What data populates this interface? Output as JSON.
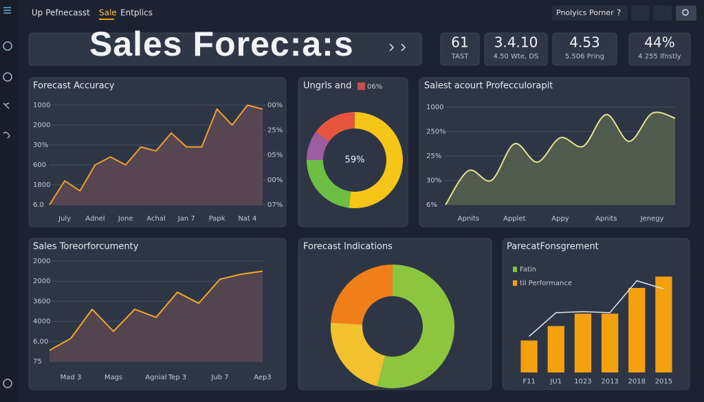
{
  "header": {
    "nav": [
      "Up Pefnecasst",
      "Sale",
      "Entplics"
    ],
    "account": "Pnolyics Porner",
    "help": "?"
  },
  "title": "Sales Forec:a:s",
  "kpis": [
    {
      "value": "61",
      "label": "TAST"
    },
    {
      "value": "3.4.10",
      "label": "4.50 Wte, DS"
    },
    {
      "value": "4.53",
      "label": "5.506 Pring"
    },
    {
      "value": "44%",
      "label": "4 255 Ifnstly"
    }
  ],
  "chart_data": [
    {
      "type": "line",
      "title": "Forecast Accuracy",
      "categories": [
        null,
        "July",
        null,
        "Adnel",
        null,
        "Jone",
        null,
        "Achal",
        null,
        "Jan 7",
        null,
        "Papk",
        null,
        "Nat 4",
        null
      ],
      "series": [
        {
          "color": "#f0a030",
          "values": [
            0,
            1.2,
            0.7,
            2.0,
            2.4,
            2.0,
            2.9,
            2.7,
            3.6,
            2.9,
            2.9,
            4.8,
            4.0,
            5.0,
            4.8
          ]
        }
      ],
      "fill": "#5e4853",
      "ylim": [
        0,
        5
      ],
      "yticks": [
        {
          "value": 0,
          "label": "6.0"
        },
        {
          "value": 1,
          "label": "1800"
        },
        {
          "value": 2,
          "label": "600"
        },
        {
          "value": 3,
          "label": "30%"
        },
        {
          "value": 4,
          "label": "2000"
        },
        {
          "value": 5,
          "label": "1000"
        }
      ],
      "y2lim": [
        0,
        4
      ],
      "y2ticks": [
        {
          "value": 0,
          "label": "07%"
        },
        {
          "value": 1,
          "label": "00%"
        },
        {
          "value": 2,
          "label": "05%"
        },
        {
          "value": 3,
          "label": "25%"
        },
        {
          "value": 4,
          "label": "00%"
        }
      ],
      "grid": true
    },
    {
      "type": "donut",
      "title": "Ungrls and",
      "legend_label": "06%",
      "legend_color": "#c0504d",
      "center_label": "59%",
      "values": [
        52,
        23,
        10,
        15
      ],
      "colors": [
        "#f5c518",
        "#6cbf43",
        "#9b5ea0",
        "#e8553f"
      ]
    },
    {
      "type": "line",
      "title": "Salest acourt Profecculorapit",
      "categories": [
        null,
        "Apnits",
        null,
        "Applet",
        null,
        "Appy",
        null,
        "Apnits",
        null,
        "Jenegy",
        null
      ],
      "series": [
        {
          "color": "#e8e290",
          "values": [
            0,
            1.4,
            1.0,
            2.5,
            1.75,
            2.75,
            2.4,
            3.7,
            2.6,
            3.75,
            3.55
          ]
        }
      ],
      "fill": "#56614f",
      "smooth": true,
      "ylim": [
        0,
        4
      ],
      "yticks": [
        {
          "value": 0,
          "label": "6%"
        },
        {
          "value": 1,
          "label": "30%"
        },
        {
          "value": 2,
          "label": "25%"
        },
        {
          "value": 3,
          "label": "250%"
        },
        {
          "value": 4,
          "label": "1000"
        }
      ],
      "grid": true
    },
    {
      "type": "line",
      "title": "Sales Toreorforcumenty",
      "categories": [
        null,
        "Mad 3",
        null,
        "Mags",
        null,
        "Agnial",
        "Tep 3",
        null,
        "Jub 7",
        null,
        "Aep3"
      ],
      "series": [
        {
          "color": "#f0a828",
          "values": [
            0.55,
            1.15,
            2.6,
            1.5,
            2.6,
            2.2,
            3.45,
            2.9,
            4.1,
            4.35,
            4.5
          ]
        }
      ],
      "fill": "#5a4652",
      "ylim": [
        0,
        5
      ],
      "yticks": [
        {
          "value": 0,
          "label": "75"
        },
        {
          "value": 1,
          "label": "6,00"
        },
        {
          "value": 2,
          "label": "4000"
        },
        {
          "value": 3,
          "label": "3600"
        },
        {
          "value": 4,
          "label": "2000"
        },
        {
          "value": 5,
          "label": "2000"
        }
      ],
      "grid": true
    },
    {
      "type": "donut",
      "title": "Forecast Indications",
      "values": [
        54,
        22,
        24
      ],
      "colors": [
        "#8cc63f",
        "#f2c12e",
        "#f07f1a"
      ]
    },
    {
      "type": "bar_line",
      "title": "ParecatFonsgrement",
      "categories": [
        "F11",
        "JU1",
        "1023",
        "2013",
        "2018",
        "2015"
      ],
      "ylim": [
        0,
        10
      ],
      "series": [
        {
          "name": "Fatin",
          "type": "line",
          "color": "#7dc242",
          "line_color": "#e4e6ea",
          "values": [
            3.5,
            5.8,
            5.9,
            5.8,
            8.9,
            8.1
          ]
        },
        {
          "name": "til Performance",
          "type": "bar",
          "color": "#f5a00f",
          "values": [
            3.1,
            4.5,
            5.7,
            5.7,
            8.2,
            9.3
          ]
        }
      ]
    }
  ]
}
